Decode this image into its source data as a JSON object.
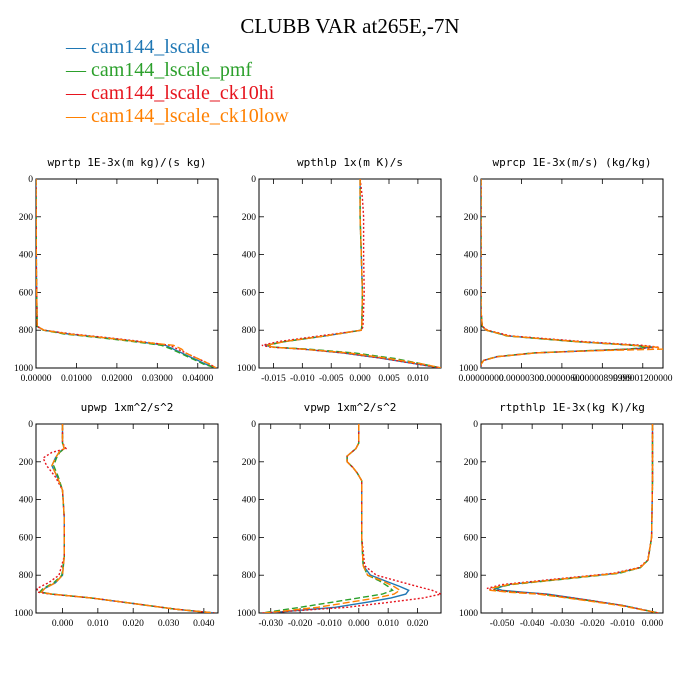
{
  "title": "CLUBB VAR at265E,-7N",
  "legend": [
    {
      "label": "cam144_lscale",
      "color": "#1f77b4",
      "dash": ""
    },
    {
      "label": "cam144_lscale_pmf",
      "color": "#2ca02c",
      "dash": "6,3"
    },
    {
      "label": "cam144_lscale_ck10hi",
      "color": "#e6141e",
      "dash": "2,2"
    },
    {
      "label": "cam144_lscale_ck10low",
      "color": "#ff8000",
      "dash": "7,3"
    }
  ],
  "chart_data": [
    {
      "type": "line",
      "title": "wprtp  1E-3x(m kg)/(s kg)",
      "xlim": [
        0,
        0.045
      ],
      "ylim": [
        0,
        1000
      ],
      "y_inverted": true,
      "xticks": [
        0,
        0.01,
        0.02,
        0.03,
        0.04
      ],
      "xticklabels": [
        "0.00000",
        "0.01000",
        "0.02000",
        "0.03000",
        "0.04000"
      ],
      "yticks": [
        0,
        200,
        400,
        600,
        800,
        1000
      ],
      "y": [
        0,
        500,
        780,
        800,
        820,
        840,
        860,
        880,
        900,
        920,
        940,
        960,
        980,
        1000
      ],
      "series": [
        {
          "name": "cam144_lscale",
          "values": [
            0,
            0.0001,
            0.0003,
            0.002,
            0.008,
            0.017,
            0.025,
            0.032,
            0.034,
            0.036,
            0.038,
            0.04,
            0.042,
            0.0445
          ]
        },
        {
          "name": "cam144_lscale_pmf",
          "values": [
            0,
            0.0001,
            0.0003,
            0.0018,
            0.007,
            0.016,
            0.024,
            0.031,
            0.0335,
            0.0355,
            0.0375,
            0.0395,
            0.0415,
            0.0445
          ]
        },
        {
          "name": "cam144_lscale_ck10hi",
          "values": [
            0,
            0.0001,
            0.0003,
            0.002,
            0.009,
            0.018,
            0.026,
            0.033,
            0.035,
            0.037,
            0.039,
            0.041,
            0.043,
            0.0445
          ]
        },
        {
          "name": "cam144_lscale_ck10low",
          "values": [
            0,
            0.0001,
            0.0003,
            0.002,
            0.008,
            0.017,
            0.025,
            0.034,
            0.036,
            0.037,
            0.039,
            0.041,
            0.043,
            0.0445
          ]
        }
      ]
    },
    {
      "type": "line",
      "title": "wpthlp  1x(m K)/s",
      "xlim": [
        -0.0175,
        0.014
      ],
      "ylim": [
        0,
        1000
      ],
      "y_inverted": true,
      "xticks": [
        -0.015,
        -0.01,
        -0.005,
        0,
        0.005,
        0.01
      ],
      "xticklabels": [
        "-0.015",
        "-0.010",
        "-0.005",
        "0.000",
        "0.005",
        "0.010"
      ],
      "yticks": [
        0,
        200,
        400,
        600,
        800,
        1000
      ],
      "y": [
        0,
        100,
        200,
        400,
        600,
        780,
        800,
        830,
        860,
        880,
        890,
        900,
        920,
        950,
        980,
        1000
      ],
      "series": [
        {
          "name": "cam144_lscale",
          "values": [
            0,
            0,
            0,
            0.0002,
            0.0004,
            0.0003,
            0.0002,
            -0.006,
            -0.013,
            -0.0165,
            -0.015,
            -0.01,
            -0.003,
            0.004,
            0.01,
            0.014
          ]
        },
        {
          "name": "cam144_lscale_pmf",
          "values": [
            0,
            0,
            0,
            0.0002,
            0.0004,
            0.0003,
            0.0002,
            -0.006,
            -0.013,
            -0.016,
            -0.0148,
            -0.009,
            -0.001,
            0.006,
            0.011,
            0.014
          ]
        },
        {
          "name": "cam144_lscale_ck10hi",
          "values": [
            0,
            0.0004,
            0.0006,
            0.0006,
            0.0007,
            0.0005,
            0.0003,
            -0.007,
            -0.014,
            -0.017,
            -0.0155,
            -0.01,
            -0.003,
            0.004,
            0.01,
            0.014
          ]
        },
        {
          "name": "cam144_lscale_ck10low",
          "values": [
            0,
            0,
            0,
            0.0002,
            0.0004,
            0.0003,
            0.0002,
            -0.006,
            -0.013,
            -0.0162,
            -0.015,
            -0.01,
            -0.002,
            0.005,
            0.011,
            0.014
          ]
        }
      ]
    },
    {
      "type": "line",
      "title": "wprcp  1E-3x(m/s) (kg/kg)",
      "xlim": [
        0,
        1.35e-05
      ],
      "ylim": [
        0,
        1000
      ],
      "y_inverted": true,
      "xticks": [
        0,
        3e-06,
        6e-06,
        9e-06,
        1.2e-05
      ],
      "xticklabels": [
        "0.00000000",
        "0.00000300",
        "0.00000600",
        "0.00000899999",
        "0.00001200000"
      ],
      "yticks": [
        0,
        200,
        400,
        600,
        800,
        1000
      ],
      "y": [
        0,
        700,
        780,
        800,
        830,
        860,
        880,
        890,
        900,
        910,
        920,
        940,
        960,
        980,
        1000
      ],
      "series": [
        {
          "name": "cam144_lscale",
          "values": [
            0,
            0,
            1e-07,
            4e-07,
            2e-06,
            7e-06,
            1.15e-05,
            1.28e-05,
            1.1e-05,
            7.5e-06,
            4e-06,
            1.2e-06,
            2e-07,
            0,
            0
          ]
        },
        {
          "name": "cam144_lscale_pmf",
          "values": [
            0,
            0,
            1e-07,
            4e-07,
            1.9e-06,
            6.8e-06,
            1.12e-05,
            1.26e-05,
            1.08e-05,
            7.3e-06,
            3.9e-06,
            1.1e-06,
            2e-07,
            0,
            0
          ]
        },
        {
          "name": "cam144_lscale_ck10hi",
          "values": [
            0,
            0,
            1e-07,
            5e-07,
            2.2e-06,
            7.5e-06,
            1.2e-05,
            1.32e-05,
            1.12e-05,
            7.6e-06,
            4e-06,
            1.2e-06,
            2e-07,
            0,
            0
          ]
        },
        {
          "name": "cam144_lscale_ck10low",
          "values": [
            0,
            0,
            1e-07,
            4e-07,
            2e-06,
            7e-06,
            1.13e-05,
            1.3e-05,
            1.35e-05,
            7.8e-06,
            4.1e-06,
            1.2e-06,
            2e-07,
            0,
            0
          ]
        }
      ]
    },
    {
      "type": "line",
      "title": "upwp  1xm^2/s^2",
      "xlim": [
        -0.0075,
        0.044
      ],
      "ylim": [
        0,
        1000
      ],
      "y_inverted": true,
      "xticks": [
        0,
        0.01,
        0.02,
        0.03,
        0.04
      ],
      "xticklabels": [
        "0.000",
        "0.010",
        "0.020",
        "0.030",
        "0.040"
      ],
      "yticks": [
        0,
        200,
        400,
        600,
        800,
        1000
      ],
      "y": [
        0,
        100,
        130,
        150,
        180,
        220,
        280,
        350,
        500,
        700,
        800,
        840,
        870,
        890,
        900,
        920,
        950,
        980,
        1000
      ],
      "series": [
        {
          "name": "cam144_lscale",
          "values": [
            0,
            0,
            0.0005,
            -0.001,
            -0.002,
            -0.003,
            -0.0015,
            0,
            0.0005,
            0.0005,
            0,
            -0.002,
            -0.005,
            -0.006,
            -0.003,
            0.008,
            0.02,
            0.032,
            0.043
          ]
        },
        {
          "name": "cam144_lscale_pmf",
          "values": [
            0,
            0,
            0.0005,
            -0.0008,
            -0.0017,
            -0.0025,
            -0.0012,
            0,
            0.0005,
            0.0005,
            -0.0002,
            -0.0025,
            -0.0055,
            -0.0065,
            -0.003,
            0.008,
            0.02,
            0.032,
            0.043
          ]
        },
        {
          "name": "cam144_lscale_ck10hi",
          "values": [
            0,
            0,
            0.001,
            -0.003,
            -0.0055,
            -0.0045,
            -0.002,
            0,
            0.0005,
            0.0005,
            -0.001,
            -0.004,
            -0.0072,
            -0.007,
            -0.0035,
            0.008,
            0.02,
            0.032,
            0.043
          ]
        },
        {
          "name": "cam144_lscale_ck10low",
          "values": [
            0,
            0,
            0.0005,
            -0.001,
            -0.002,
            -0.003,
            -0.0015,
            0,
            0.0005,
            0.0005,
            0,
            -0.002,
            -0.005,
            -0.006,
            -0.003,
            0.008,
            0.02,
            0.032,
            0.043
          ]
        }
      ]
    },
    {
      "type": "line",
      "title": "vpwp  1xm^2/s^2",
      "xlim": [
        -0.034,
        0.028
      ],
      "ylim": [
        0,
        1000
      ],
      "y_inverted": true,
      "xticks": [
        -0.03,
        -0.02,
        -0.01,
        0,
        0.01,
        0.02
      ],
      "xticklabels": [
        "-0.030",
        "-0.020",
        "-0.010",
        "0.000",
        "0.010",
        "0.020"
      ],
      "yticks": [
        0,
        200,
        400,
        600,
        800,
        1000
      ],
      "y": [
        0,
        100,
        130,
        170,
        200,
        230,
        260,
        300,
        400,
        600,
        750,
        800,
        830,
        860,
        880,
        900,
        920,
        940,
        970,
        1000
      ],
      "series": [
        {
          "name": "cam144_lscale",
          "values": [
            0,
            0,
            -0.001,
            -0.004,
            -0.004,
            -0.002,
            -0.0005,
            0.001,
            0.001,
            0.001,
            0.0015,
            0.004,
            0.009,
            0.014,
            0.017,
            0.016,
            0.011,
            0.004,
            -0.008,
            -0.031
          ]
        },
        {
          "name": "cam144_lscale_pmf",
          "values": [
            0,
            0,
            -0.001,
            -0.004,
            -0.004,
            -0.002,
            -0.0005,
            0.001,
            0.001,
            0.001,
            0.0015,
            0.003,
            0.007,
            0.01,
            0.0115,
            0.008,
            0.0,
            -0.008,
            -0.02,
            -0.033
          ]
        },
        {
          "name": "cam144_lscale_ck10hi",
          "values": [
            0,
            0,
            -0.001,
            -0.004,
            -0.004,
            -0.002,
            -0.0005,
            0.001,
            0.001,
            0.001,
            0.002,
            0.006,
            0.013,
            0.02,
            0.025,
            0.028,
            0.022,
            0.012,
            -0.004,
            -0.033
          ]
        },
        {
          "name": "cam144_lscale_ck10low",
          "values": [
            0,
            0,
            -0.001,
            -0.004,
            -0.004,
            -0.002,
            -0.0005,
            0.001,
            0.001,
            0.001,
            0.0015,
            0.003,
            0.008,
            0.012,
            0.014,
            0.012,
            0.006,
            -0.002,
            -0.014,
            -0.032
          ]
        }
      ]
    },
    {
      "type": "line",
      "title": "rtpthlp  1E-3x(kg K)/kg",
      "xlim": [
        -0.057,
        0.0035
      ],
      "ylim": [
        0,
        1000
      ],
      "y_inverted": true,
      "xticks": [
        -0.05,
        -0.04,
        -0.03,
        -0.02,
        -0.01,
        0
      ],
      "xticklabels": [
        "-0.050",
        "-0.040",
        "-0.030",
        "-0.020",
        "-0.010",
        "0.000"
      ],
      "yticks": [
        0,
        200,
        400,
        600,
        800,
        1000
      ],
      "y": [
        0,
        300,
        600,
        720,
        760,
        790,
        820,
        850,
        870,
        880,
        890,
        900,
        930,
        960,
        1000
      ],
      "series": [
        {
          "name": "cam144_lscale",
          "values": [
            0,
            0,
            -0.0003,
            -0.0015,
            -0.004,
            -0.012,
            -0.03,
            -0.048,
            -0.052,
            -0.05,
            -0.043,
            -0.035,
            -0.022,
            -0.01,
            0.002
          ]
        },
        {
          "name": "cam144_lscale_pmf",
          "values": [
            0,
            0,
            -0.0003,
            -0.0015,
            -0.004,
            -0.011,
            -0.029,
            -0.047,
            -0.053,
            -0.052,
            -0.046,
            -0.037,
            -0.023,
            -0.01,
            0.002
          ]
        },
        {
          "name": "cam144_lscale_ck10hi",
          "values": [
            0,
            0,
            -0.0003,
            -0.0016,
            -0.0045,
            -0.013,
            -0.032,
            -0.05,
            -0.055,
            -0.052,
            -0.045,
            -0.036,
            -0.022,
            -0.01,
            0.002
          ]
        },
        {
          "name": "cam144_lscale_ck10low",
          "values": [
            0,
            0,
            -0.0003,
            -0.0015,
            -0.004,
            -0.012,
            -0.03,
            -0.048,
            -0.054,
            -0.054,
            -0.048,
            -0.038,
            -0.024,
            -0.011,
            0.002
          ]
        }
      ]
    }
  ]
}
